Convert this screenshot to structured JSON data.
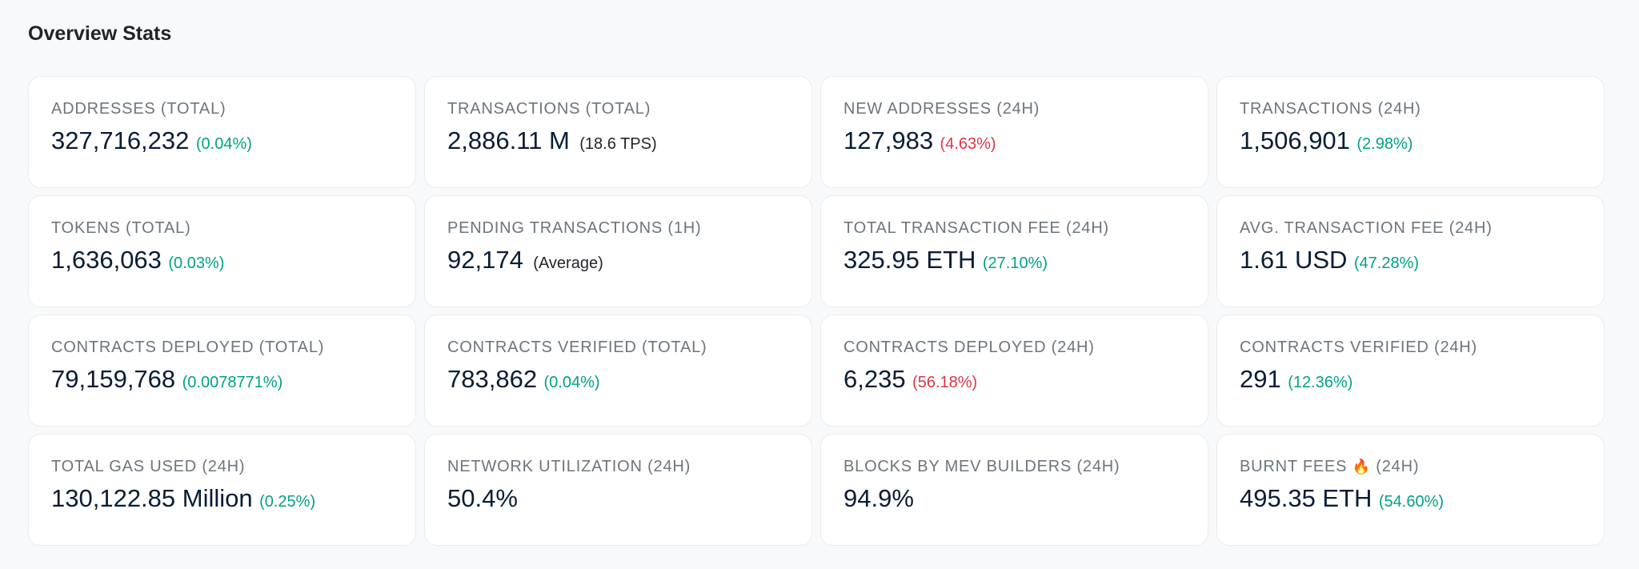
{
  "section": {
    "title": "Overview Stats"
  },
  "colors": {
    "positive": "#00a186",
    "negative": "#dc3545",
    "neutral": "#212529"
  },
  "stats": [
    {
      "label": "ADDRESSES (TOTAL)",
      "value": "327,716,232",
      "change": "(0.04%)",
      "trend": "up"
    },
    {
      "label": "TRANSACTIONS (TOTAL)",
      "value": "2,886.11 M",
      "change": "(18.6 TPS)",
      "trend": "neutral"
    },
    {
      "label": "NEW ADDRESSES (24H)",
      "value": "127,983",
      "change": "(4.63%)",
      "trend": "down"
    },
    {
      "label": "TRANSACTIONS (24H)",
      "value": "1,506,901",
      "change": "(2.98%)",
      "trend": "up"
    },
    {
      "label": "TOKENS (TOTAL)",
      "value": "1,636,063",
      "change": "(0.03%)",
      "trend": "up"
    },
    {
      "label": "PENDING TRANSACTIONS (1H)",
      "value": "92,174",
      "change": "(Average)",
      "trend": "neutral"
    },
    {
      "label": "TOTAL TRANSACTION FEE (24H)",
      "value": "325.95 ETH",
      "change": "(27.10%)",
      "trend": "up"
    },
    {
      "label": "AVG. TRANSACTION FEE (24H)",
      "value": "1.61 USD",
      "change": "(47.28%)",
      "trend": "up"
    },
    {
      "label": "CONTRACTS DEPLOYED (TOTAL)",
      "value": "79,159,768",
      "change": "(0.0078771%)",
      "trend": "up"
    },
    {
      "label": "CONTRACTS VERIFIED (TOTAL)",
      "value": "783,862",
      "change": "(0.04%)",
      "trend": "up"
    },
    {
      "label": "CONTRACTS DEPLOYED (24H)",
      "value": "6,235",
      "change": "(56.18%)",
      "trend": "down"
    },
    {
      "label": "CONTRACTS VERIFIED (24H)",
      "value": "291",
      "change": "(12.36%)",
      "trend": "up"
    },
    {
      "label": "TOTAL GAS USED (24H)",
      "value": "130,122.85 Million",
      "change": "(0.25%)",
      "trend": "up"
    },
    {
      "label": "NETWORK UTILIZATION (24H)",
      "value": "50.4%",
      "change": "",
      "trend": "none"
    },
    {
      "label": "BLOCKS BY MEV BUILDERS (24H)",
      "value": "94.9%",
      "change": "",
      "trend": "none"
    },
    {
      "label_before_icon": "BURNT FEES",
      "icon": "fire-icon",
      "icon_glyph": "🔥",
      "label_after_icon": "(24H)",
      "value": "495.35 ETH",
      "change": "(54.60%)",
      "trend": "up"
    }
  ]
}
